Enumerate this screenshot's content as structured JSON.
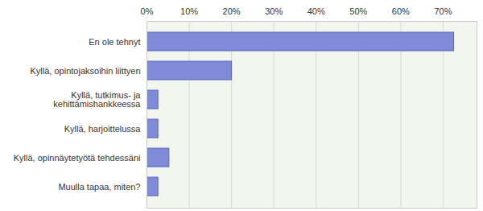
{
  "chart_data": {
    "type": "bar",
    "orientation": "horizontal",
    "categories": [
      "En ole tehnyt",
      "Kyllä, opintojaksoihin liittyen",
      "Kyllä, tutkimus- ja kehittämishankkeessa",
      "Kyllä, harjoittelussa",
      "Kyllä, opinnäytetyötä tehdessäni",
      "Muulla tapaa, miten?"
    ],
    "values": [
      72.6,
      20.1,
      2.7,
      2.7,
      5.3,
      2.7
    ],
    "color": "#7f8bd8",
    "xlim": [
      0,
      78
    ],
    "xticks": [
      {
        "value": 0,
        "label": "0%"
      },
      {
        "value": 10,
        "label": "10%"
      },
      {
        "value": 20,
        "label": "20%"
      },
      {
        "value": 30,
        "label": "30%"
      },
      {
        "value": 40,
        "label": "40%"
      },
      {
        "value": 50,
        "label": "50%"
      },
      {
        "value": 60,
        "label": "60%"
      },
      {
        "value": 70,
        "label": "70%"
      }
    ],
    "grid": true
  }
}
